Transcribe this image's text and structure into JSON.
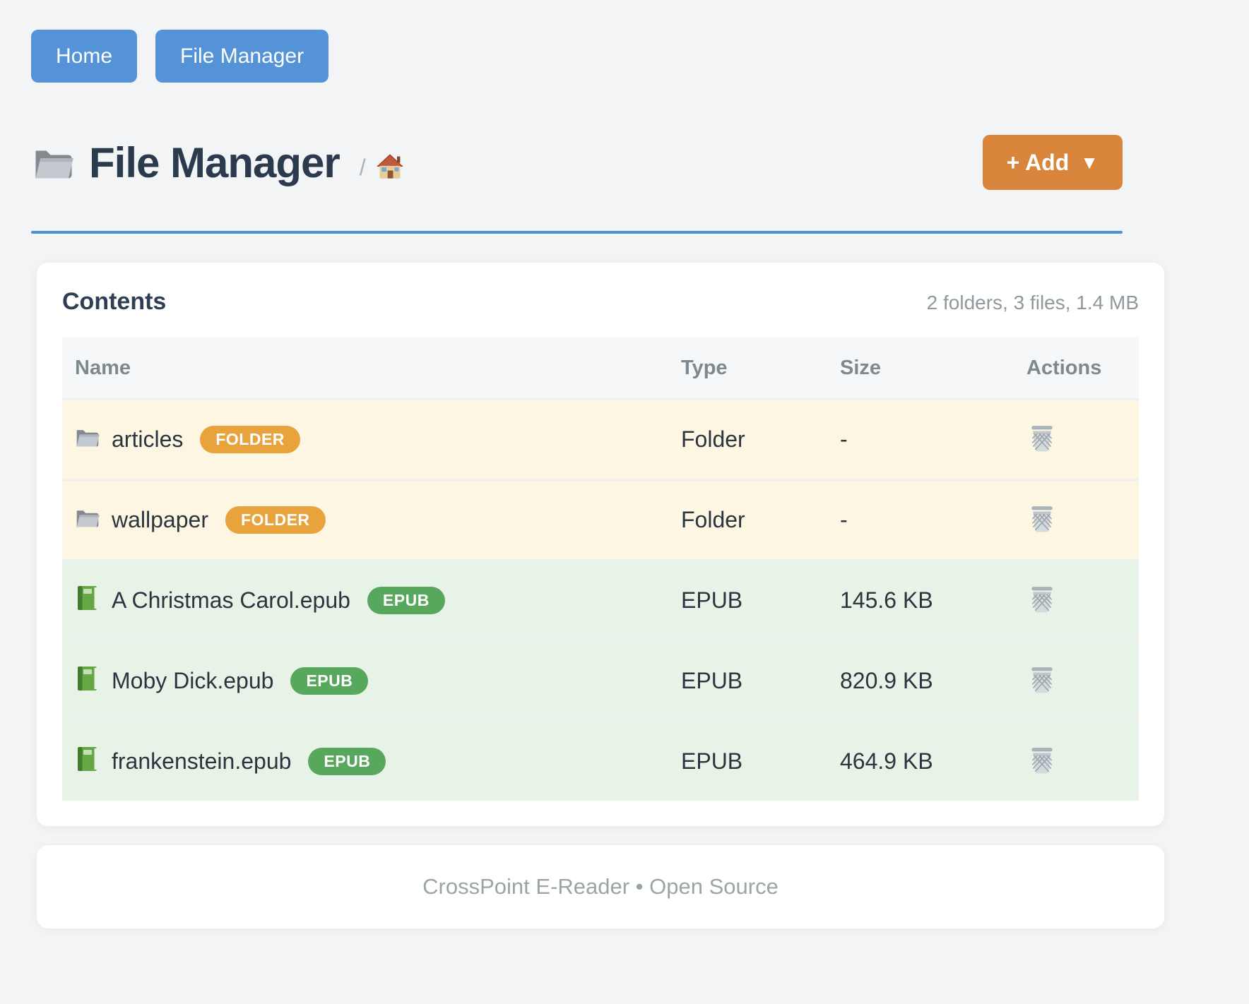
{
  "nav": {
    "items": [
      {
        "label": "Home"
      },
      {
        "label": "File Manager"
      }
    ]
  },
  "header": {
    "title": "File Manager",
    "title_icon": "folder-icon",
    "breadcrumb_separator": "/",
    "breadcrumb_home_icon": "home-icon",
    "add_button": {
      "label": "+ Add",
      "caret": "▼"
    }
  },
  "contents": {
    "title": "Contents",
    "summary": "2 folders, 3 files, 1.4 MB",
    "columns": [
      "Name",
      "Type",
      "Size",
      "Actions"
    ],
    "rows": [
      {
        "icon": "folder-icon",
        "name": "articles",
        "badge": "FOLDER",
        "type": "Folder",
        "size": "-",
        "kind": "folder",
        "action_icon": "trash-icon"
      },
      {
        "icon": "folder-icon",
        "name": "wallpaper",
        "badge": "FOLDER",
        "type": "Folder",
        "size": "-",
        "kind": "folder",
        "action_icon": "trash-icon"
      },
      {
        "icon": "book-icon",
        "name": "A Christmas Carol.epub",
        "badge": "EPUB",
        "type": "EPUB",
        "size": "145.6 KB",
        "kind": "epub",
        "action_icon": "trash-icon"
      },
      {
        "icon": "book-icon",
        "name": "Moby Dick.epub",
        "badge": "EPUB",
        "type": "EPUB",
        "size": "820.9 KB",
        "kind": "epub",
        "action_icon": "trash-icon"
      },
      {
        "icon": "book-icon",
        "name": "frankenstein.epub",
        "badge": "EPUB",
        "type": "EPUB",
        "size": "464.9 KB",
        "kind": "epub",
        "action_icon": "trash-icon"
      }
    ]
  },
  "footer": {
    "text": "CrossPoint E-Reader • Open Source"
  },
  "colors": {
    "nav_button_blue": "#5493d7",
    "header_rule_blue": "#4a90d2",
    "add_button_orange": "#d9853c",
    "folder_badge_orange": "#e8a33d",
    "epub_badge_green": "#57a85c",
    "folder_row_bg": "#fdf6e2",
    "epub_row_bg": "#e8f3e8"
  }
}
